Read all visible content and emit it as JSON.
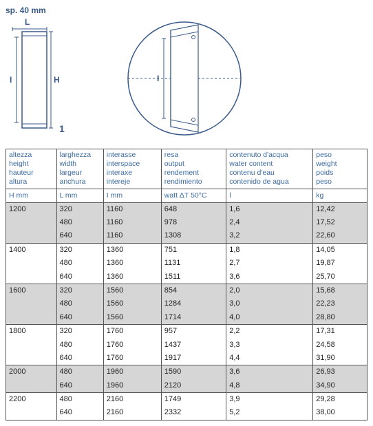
{
  "header_label": "sp. 40 mm",
  "diagram": {
    "L": "L",
    "H": "H",
    "I": "I",
    "one": "1"
  },
  "columns": [
    {
      "labels": [
        "altezza",
        "height",
        "hauteur",
        "altura"
      ],
      "unit": "H mm"
    },
    {
      "labels": [
        "larghezza",
        "width",
        "largeur",
        "anchura"
      ],
      "unit": "L mm"
    },
    {
      "labels": [
        "interasse",
        "interspace",
        "interaxe",
        "intereje"
      ],
      "unit": "I mm"
    },
    {
      "labels": [
        "resa",
        "output",
        "rendement",
        "rendimiento"
      ],
      "unit": "watt ΔT 50°C"
    },
    {
      "labels": [
        "contenuto d'acqua",
        "water content",
        "contenu d'eau",
        "contenido de agua"
      ],
      "unit": "l"
    },
    {
      "labels": [
        "peso",
        "weight",
        "poids",
        "peso"
      ],
      "unit": "kg"
    }
  ],
  "groups": [
    {
      "H": "1200",
      "shade": true,
      "rows": [
        {
          "L": "320",
          "I": "1160",
          "W": "648",
          "WA": "1,6",
          "KG": "12,42"
        },
        {
          "L": "480",
          "I": "1160",
          "W": "978",
          "WA": "2,4",
          "KG": "17,52"
        },
        {
          "L": "640",
          "I": "1160",
          "W": "1308",
          "WA": "3,2",
          "KG": "22,60"
        }
      ]
    },
    {
      "H": "1400",
      "shade": false,
      "rows": [
        {
          "L": "320",
          "I": "1360",
          "W": "751",
          "WA": "1,8",
          "KG": "14,05"
        },
        {
          "L": "480",
          "I": "1360",
          "W": "1131",
          "WA": "2,7",
          "KG": "19,87"
        },
        {
          "L": "640",
          "I": "1360",
          "W": "1511",
          "WA": "3,6",
          "KG": "25,70"
        }
      ]
    },
    {
      "H": "1600",
      "shade": true,
      "rows": [
        {
          "L": "320",
          "I": "1560",
          "W": "854",
          "WA": "2,0",
          "KG": "15,68"
        },
        {
          "L": "480",
          "I": "1560",
          "W": "1284",
          "WA": "3,0",
          "KG": "22,23"
        },
        {
          "L": "640",
          "I": "1560",
          "W": "1714",
          "WA": "4,0",
          "KG": "28,80"
        }
      ]
    },
    {
      "H": "1800",
      "shade": false,
      "rows": [
        {
          "L": "320",
          "I": "1760",
          "W": "957",
          "WA": "2,2",
          "KG": "17,31"
        },
        {
          "L": "480",
          "I": "1760",
          "W": "1437",
          "WA": "3,3",
          "KG": "24,58"
        },
        {
          "L": "640",
          "I": "1760",
          "W": "1917",
          "WA": "4,4",
          "KG": "31,90"
        }
      ]
    },
    {
      "H": "2000",
      "shade": true,
      "rows": [
        {
          "L": "480",
          "I": "1960",
          "W": "1590",
          "WA": "3,6",
          "KG": "26,93"
        },
        {
          "L": "640",
          "I": "1960",
          "W": "2120",
          "WA": "4,8",
          "KG": "34,90"
        }
      ]
    },
    {
      "H": "2200",
      "shade": false,
      "rows": [
        {
          "L": "480",
          "I": "2160",
          "W": "1749",
          "WA": "3,9",
          "KG": "29,28"
        },
        {
          "L": "640",
          "I": "2160",
          "W": "2332",
          "WA": "5,2",
          "KG": "38,00"
        }
      ]
    }
  ]
}
